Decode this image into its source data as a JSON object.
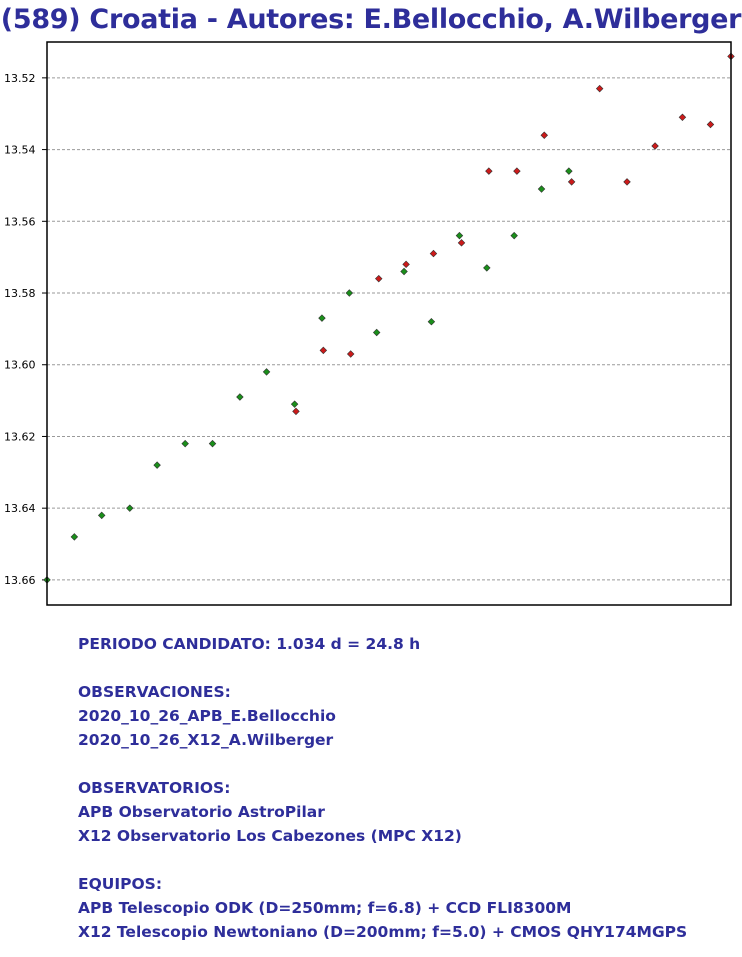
{
  "title": "(589) Croatia - Autores: E.Bellocchio, A.Wilberger",
  "colors": {
    "title": "#2e2e9a",
    "text": "#2e2e9a",
    "series_a": "#1a8f1a",
    "series_b": "#cc1a1a",
    "grid": "#9a9a9a"
  },
  "chart_data": {
    "type": "scatter",
    "title": "(589) Croatia - Autores: E.Bellocchio, A.Wilberger",
    "xlabel": "",
    "ylabel": "",
    "ylim": [
      13.667,
      13.51
    ],
    "y_inverted": true,
    "xlim": [
      0,
      1
    ],
    "x_tick_labels": false,
    "grid": "horizontal-dashed",
    "yticks": [
      {
        "value": 13.52,
        "label": "13.52"
      },
      {
        "value": 13.54,
        "label": "13.54"
      },
      {
        "value": 13.56,
        "label": "13.56"
      },
      {
        "value": 13.58,
        "label": "13.58"
      },
      {
        "value": 13.6,
        "label": "13.60"
      },
      {
        "value": 13.62,
        "label": "13.62"
      },
      {
        "value": 13.64,
        "label": "13.64"
      },
      {
        "value": 13.66,
        "label": "13.66"
      }
    ],
    "series": [
      {
        "color": "#1a8f1a",
        "points": [
          {
            "x": 0.0,
            "y": 13.66
          },
          {
            "x": 0.04,
            "y": 13.648
          },
          {
            "x": 0.08,
            "y": 13.642
          },
          {
            "x": 0.121,
            "y": 13.64
          },
          {
            "x": 0.161,
            "y": 13.628
          },
          {
            "x": 0.202,
            "y": 13.622
          },
          {
            "x": 0.242,
            "y": 13.622
          },
          {
            "x": 0.282,
            "y": 13.609
          },
          {
            "x": 0.321,
            "y": 13.602
          },
          {
            "x": 0.362,
            "y": 13.611
          },
          {
            "x": 0.402,
            "y": 13.587
          },
          {
            "x": 0.442,
            "y": 13.58
          },
          {
            "x": 0.482,
            "y": 13.591
          },
          {
            "x": 0.522,
            "y": 13.574
          },
          {
            "x": 0.562,
            "y": 13.588
          },
          {
            "x": 0.603,
            "y": 13.564
          },
          {
            "x": 0.643,
            "y": 13.573
          },
          {
            "x": 0.683,
            "y": 13.564
          },
          {
            "x": 0.723,
            "y": 13.551
          },
          {
            "x": 0.763,
            "y": 13.546
          }
        ]
      },
      {
        "color": "#cc1a1a",
        "points": [
          {
            "x": 0.364,
            "y": 13.613
          },
          {
            "x": 0.404,
            "y": 13.596
          },
          {
            "x": 0.444,
            "y": 13.597
          },
          {
            "x": 0.485,
            "y": 13.576
          },
          {
            "x": 0.525,
            "y": 13.572
          },
          {
            "x": 0.565,
            "y": 13.569
          },
          {
            "x": 0.606,
            "y": 13.566
          },
          {
            "x": 0.646,
            "y": 13.546
          },
          {
            "x": 0.687,
            "y": 13.546
          },
          {
            "x": 0.727,
            "y": 13.536
          },
          {
            "x": 0.767,
            "y": 13.549
          },
          {
            "x": 0.808,
            "y": 13.523
          },
          {
            "x": 0.848,
            "y": 13.549
          },
          {
            "x": 0.889,
            "y": 13.539
          },
          {
            "x": 0.929,
            "y": 13.531
          },
          {
            "x": 0.97,
            "y": 13.533
          },
          {
            "x": 1.0,
            "y": 13.514
          }
        ]
      }
    ]
  },
  "info": {
    "period": "PERIODO CANDIDATO: 1.034 d = 24.8 h",
    "observations_heading": "OBSERVACIONES:",
    "observations": [
      "2020_10_26_APB_E.Bellocchio",
      "2020_10_26_X12_A.Wilberger"
    ],
    "observatories_heading": "OBSERVATORIOS:",
    "observatories": [
      "APB Observatorio AstroPilar",
      "X12 Observatorio Los Cabezones (MPC X12)"
    ],
    "equipment_heading": "EQUIPOS:",
    "equipment": [
      "APB Telescopio ODK (D=250mm; f=6.8) + CCD FLI8300M",
      "X12 Telescopio Newtoniano (D=200mm; f=5.0) + CMOS QHY174MGPS"
    ]
  }
}
